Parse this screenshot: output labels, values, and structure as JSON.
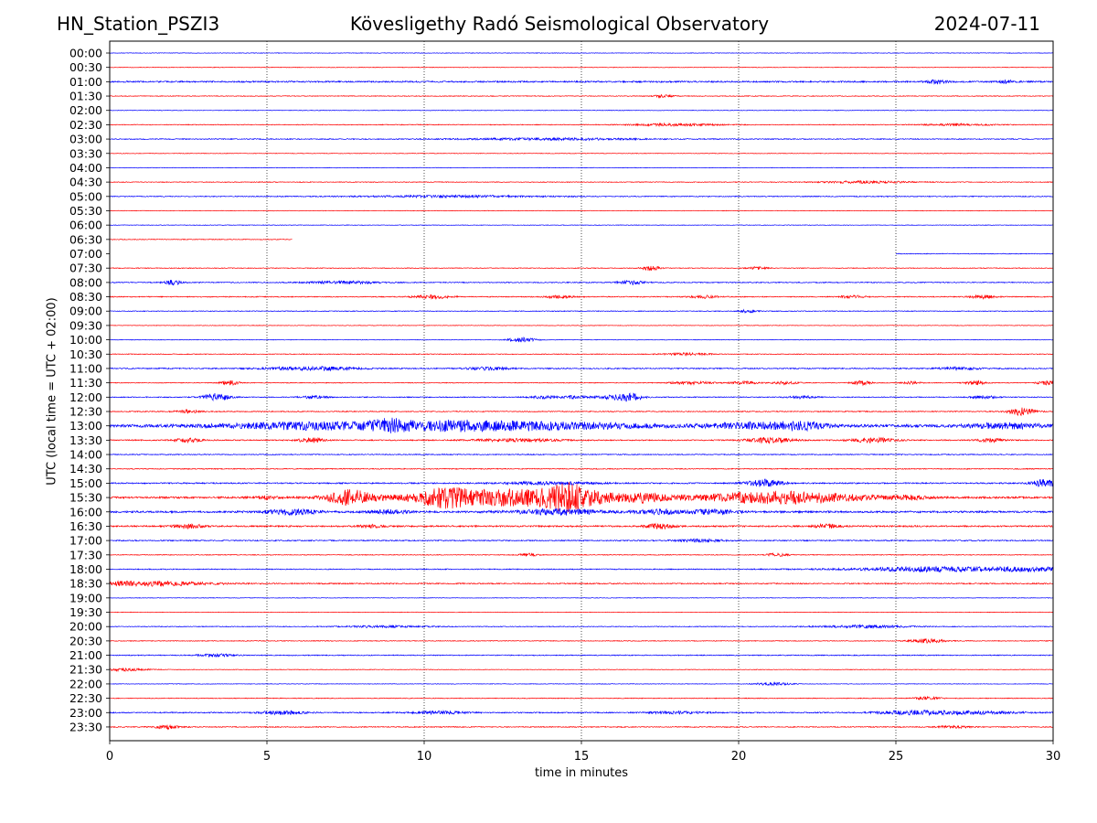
{
  "header": {
    "station": "HN_Station_PSZI3",
    "title": "Kövesligethy Radó Seismological Observatory",
    "date": "2024-07-11"
  },
  "colors": {
    "blue": "#0000ff",
    "red": "#ff0000",
    "grid": "#000000"
  },
  "chart_data": {
    "type": "line",
    "xlabel": "time in minutes",
    "ylabel": "UTC (local time = UTC + 02:00)",
    "xlim": [
      0,
      30
    ],
    "xticks": [
      0,
      5,
      10,
      15,
      20,
      25,
      30
    ],
    "grid": "vertical dotted at 5-minute marks",
    "traces": [
      {
        "label": "00:00",
        "color": "blue",
        "amp": 0.3,
        "start": 0,
        "end": 30,
        "events": []
      },
      {
        "label": "00:30",
        "color": "red",
        "amp": 0.3,
        "start": 0,
        "end": 30,
        "events": []
      },
      {
        "label": "01:00",
        "color": "blue",
        "amp": 0.8,
        "start": 0,
        "end": 30,
        "events": [
          [
            26.3,
            2.5,
            0.2
          ],
          [
            28.5,
            1.5,
            0.2
          ]
        ]
      },
      {
        "label": "01:30",
        "color": "red",
        "amp": 0.4,
        "start": 0,
        "end": 30,
        "events": [
          [
            17.6,
            1.5,
            0.2
          ]
        ]
      },
      {
        "label": "02:00",
        "color": "blue",
        "amp": 0.3,
        "start": 0,
        "end": 30,
        "events": []
      },
      {
        "label": "02:30",
        "color": "red",
        "amp": 0.4,
        "start": 0,
        "end": 30,
        "events": [
          [
            18.0,
            1.2,
            1.0
          ],
          [
            27.0,
            1.0,
            0.8
          ]
        ]
      },
      {
        "label": "03:00",
        "color": "blue",
        "amp": 0.5,
        "start": 0,
        "end": 30,
        "events": [
          [
            14.0,
            1.0,
            2.0
          ]
        ]
      },
      {
        "label": "03:30",
        "color": "red",
        "amp": 0.3,
        "start": 0,
        "end": 30,
        "events": []
      },
      {
        "label": "04:00",
        "color": "blue",
        "amp": 0.3,
        "start": 0,
        "end": 30,
        "events": []
      },
      {
        "label": "04:30",
        "color": "red",
        "amp": 0.4,
        "start": 0,
        "end": 30,
        "events": [
          [
            24.0,
            1.2,
            1.0
          ]
        ]
      },
      {
        "label": "05:00",
        "color": "blue",
        "amp": 0.5,
        "start": 0,
        "end": 30,
        "events": [
          [
            11.0,
            1.0,
            2.0
          ]
        ]
      },
      {
        "label": "05:30",
        "color": "red",
        "amp": 0.3,
        "start": 0,
        "end": 30,
        "events": []
      },
      {
        "label": "06:00",
        "color": "blue",
        "amp": 0.3,
        "start": 0,
        "end": 30,
        "events": []
      },
      {
        "label": "06:30",
        "color": "red",
        "amp": 0.4,
        "start": 0,
        "end": 5.8,
        "events": []
      },
      {
        "label": "07:00",
        "color": "blue",
        "amp": 0.4,
        "start": 25.0,
        "end": 30,
        "events": []
      },
      {
        "label": "07:30",
        "color": "red",
        "amp": 0.4,
        "start": 0,
        "end": 30,
        "events": [
          [
            17.2,
            2.5,
            0.2
          ],
          [
            20.6,
            1.5,
            0.2
          ]
        ]
      },
      {
        "label": "08:00",
        "color": "blue",
        "amp": 0.5,
        "start": 0,
        "end": 30,
        "events": [
          [
            2.0,
            2.5,
            0.2
          ],
          [
            7.5,
            1.5,
            0.8
          ],
          [
            16.6,
            2.0,
            0.3
          ]
        ]
      },
      {
        "label": "08:30",
        "color": "red",
        "amp": 0.5,
        "start": 0,
        "end": 30,
        "events": [
          [
            10.3,
            2.0,
            0.4
          ],
          [
            14.3,
            1.5,
            0.3
          ],
          [
            18.9,
            1.5,
            0.3
          ],
          [
            23.6,
            1.5,
            0.3
          ],
          [
            27.8,
            2.0,
            0.3
          ]
        ]
      },
      {
        "label": "09:00",
        "color": "blue",
        "amp": 0.4,
        "start": 0,
        "end": 30,
        "events": [
          [
            20.3,
            1.5,
            0.2
          ]
        ]
      },
      {
        "label": "09:30",
        "color": "red",
        "amp": 0.3,
        "start": 0,
        "end": 30,
        "events": []
      },
      {
        "label": "10:00",
        "color": "blue",
        "amp": 0.3,
        "start": 0,
        "end": 30,
        "events": [
          [
            13.1,
            2.5,
            0.3
          ]
        ]
      },
      {
        "label": "10:30",
        "color": "red",
        "amp": 0.4,
        "start": 0,
        "end": 30,
        "events": [
          [
            18.3,
            1.2,
            0.5
          ]
        ]
      },
      {
        "label": "11:00",
        "color": "blue",
        "amp": 0.6,
        "start": 0,
        "end": 30,
        "events": [
          [
            6.5,
            2.0,
            1.0
          ],
          [
            12.0,
            1.5,
            0.5
          ],
          [
            27.0,
            1.2,
            0.5
          ]
        ]
      },
      {
        "label": "11:30",
        "color": "red",
        "amp": 0.4,
        "start": 0,
        "end": 30,
        "events": [
          [
            3.8,
            2.5,
            0.2
          ],
          [
            18.5,
            1.5,
            0.5
          ],
          [
            20.2,
            1.5,
            0.3
          ],
          [
            21.5,
            1.5,
            0.3
          ],
          [
            23.9,
            2.5,
            0.2
          ],
          [
            25.5,
            1.5,
            0.2
          ],
          [
            27.5,
            2.5,
            0.2
          ],
          [
            29.8,
            2.5,
            0.2
          ]
        ]
      },
      {
        "label": "12:00",
        "color": "blue",
        "amp": 0.5,
        "start": 0,
        "end": 30,
        "events": [
          [
            3.4,
            4.0,
            0.3
          ],
          [
            6.5,
            1.5,
            0.3
          ],
          [
            13.8,
            1.5,
            0.3
          ],
          [
            14.8,
            1.5,
            0.3
          ],
          [
            15.8,
            1.5,
            0.3
          ],
          [
            16.5,
            4.5,
            0.3
          ],
          [
            22.0,
            1.5,
            0.3
          ],
          [
            27.8,
            1.5,
            0.3
          ]
        ]
      },
      {
        "label": "12:30",
        "color": "red",
        "amp": 0.5,
        "start": 0,
        "end": 30,
        "events": [
          [
            2.5,
            1.5,
            0.3
          ],
          [
            29.0,
            4.0,
            0.3
          ]
        ]
      },
      {
        "label": "13:00",
        "color": "blue",
        "amp": 1.5,
        "start": 0,
        "end": 30,
        "events": [
          [
            6.5,
            3.5,
            2.0
          ],
          [
            8.9,
            4.0,
            0.4
          ],
          [
            11.0,
            4.5,
            1.5
          ],
          [
            14.5,
            3.0,
            2.0
          ],
          [
            20.5,
            3.0,
            1.0
          ],
          [
            22.0,
            3.5,
            0.5
          ],
          [
            28.5,
            2.5,
            0.8
          ]
        ]
      },
      {
        "label": "13:30",
        "color": "red",
        "amp": 0.6,
        "start": 0,
        "end": 30,
        "events": [
          [
            2.5,
            2.0,
            0.3
          ],
          [
            6.4,
            2.5,
            0.3
          ],
          [
            13.0,
            1.5,
            1.0
          ],
          [
            21.0,
            3.0,
            0.5
          ],
          [
            24.3,
            2.5,
            0.5
          ],
          [
            28.0,
            2.0,
            0.3
          ]
        ]
      },
      {
        "label": "14:00",
        "color": "blue",
        "amp": 0.5,
        "start": 0,
        "end": 30,
        "events": []
      },
      {
        "label": "14:30",
        "color": "red",
        "amp": 0.5,
        "start": 0,
        "end": 30,
        "events": []
      },
      {
        "label": "15:00",
        "color": "blue",
        "amp": 0.7,
        "start": 0,
        "end": 30,
        "events": [
          [
            14.0,
            1.5,
            1.0
          ],
          [
            20.8,
            4.0,
            0.4
          ],
          [
            29.8,
            4.5,
            0.3
          ]
        ]
      },
      {
        "label": "15:30",
        "color": "red",
        "amp": 1.0,
        "start": 0,
        "end": 30,
        "events": [
          [
            5.0,
            1.5,
            0.3
          ],
          [
            7.6,
            8.0,
            0.5
          ],
          [
            10.6,
            7.0,
            0.5
          ],
          [
            13.3,
            9.0,
            2.5
          ],
          [
            14.6,
            8.5,
            0.4
          ],
          [
            17.0,
            2.0,
            0.3
          ],
          [
            20.8,
            4.5,
            1.5
          ],
          [
            22.5,
            3.0,
            1.5
          ],
          [
            25.4,
            2.0,
            0.4
          ]
        ]
      },
      {
        "label": "16:00",
        "color": "blue",
        "amp": 1.0,
        "start": 0,
        "end": 30,
        "events": [
          [
            5.8,
            2.5,
            0.6
          ],
          [
            8.9,
            2.0,
            0.4
          ],
          [
            14.3,
            3.0,
            1.0
          ],
          [
            17.5,
            2.5,
            0.5
          ],
          [
            19.2,
            2.5,
            0.5
          ]
        ]
      },
      {
        "label": "16:30",
        "color": "red",
        "amp": 0.8,
        "start": 0,
        "end": 30,
        "events": [
          [
            2.5,
            2.5,
            0.3
          ],
          [
            8.3,
            1.5,
            0.3
          ],
          [
            17.5,
            2.5,
            0.3
          ],
          [
            22.8,
            2.0,
            0.3
          ]
        ]
      },
      {
        "label": "17:00",
        "color": "blue",
        "amp": 0.6,
        "start": 0,
        "end": 30,
        "events": [
          [
            18.8,
            1.5,
            0.5
          ]
        ]
      },
      {
        "label": "17:30",
        "color": "red",
        "amp": 0.4,
        "start": 0,
        "end": 30,
        "events": [
          [
            13.3,
            1.5,
            0.2
          ],
          [
            21.2,
            1.5,
            0.3
          ]
        ]
      },
      {
        "label": "18:00",
        "color": "blue",
        "amp": 0.5,
        "start": 0,
        "end": 30,
        "events": [
          [
            25.5,
            1.2,
            0.8
          ],
          [
            28.5,
            2.5,
            3.0
          ]
        ]
      },
      {
        "label": "18:30",
        "color": "red",
        "amp": 0.6,
        "start": 0,
        "end": 30,
        "events": [
          [
            1.0,
            2.5,
            1.5
          ]
        ]
      },
      {
        "label": "19:00",
        "color": "blue",
        "amp": 0.3,
        "start": 0,
        "end": 30,
        "events": []
      },
      {
        "label": "19:30",
        "color": "red",
        "amp": 0.3,
        "start": 0,
        "end": 30,
        "events": []
      },
      {
        "label": "20:00",
        "color": "blue",
        "amp": 0.4,
        "start": 0,
        "end": 30,
        "events": [
          [
            8.8,
            1.0,
            1.0
          ],
          [
            24.0,
            1.5,
            1.0
          ]
        ]
      },
      {
        "label": "20:30",
        "color": "red",
        "amp": 0.4,
        "start": 0,
        "end": 30,
        "events": [
          [
            26.0,
            2.0,
            0.4
          ]
        ]
      },
      {
        "label": "21:00",
        "color": "blue",
        "amp": 0.5,
        "start": 0,
        "end": 30,
        "events": [
          [
            3.4,
            1.5,
            0.4
          ]
        ]
      },
      {
        "label": "21:30",
        "color": "red",
        "amp": 0.3,
        "start": 0,
        "end": 30,
        "events": [
          [
            0.5,
            1.5,
            0.5
          ]
        ]
      },
      {
        "label": "22:00",
        "color": "blue",
        "amp": 0.3,
        "start": 0,
        "end": 30,
        "events": [
          [
            21.1,
            1.5,
            0.4
          ]
        ]
      },
      {
        "label": "22:30",
        "color": "red",
        "amp": 0.4,
        "start": 0,
        "end": 30,
        "events": [
          [
            26.0,
            1.5,
            0.3
          ]
        ]
      },
      {
        "label": "23:00",
        "color": "blue",
        "amp": 0.6,
        "start": 0,
        "end": 30,
        "events": [
          [
            5.5,
            2.0,
            0.5
          ],
          [
            10.5,
            1.5,
            0.6
          ],
          [
            18.0,
            1.2,
            0.6
          ],
          [
            25.5,
            2.0,
            0.8
          ],
          [
            27.5,
            1.5,
            1.0
          ]
        ]
      },
      {
        "label": "23:30",
        "color": "red",
        "amp": 0.5,
        "start": 0,
        "end": 30,
        "events": [
          [
            1.8,
            2.0,
            0.3
          ],
          [
            26.8,
            1.2,
            0.4
          ]
        ]
      }
    ]
  }
}
